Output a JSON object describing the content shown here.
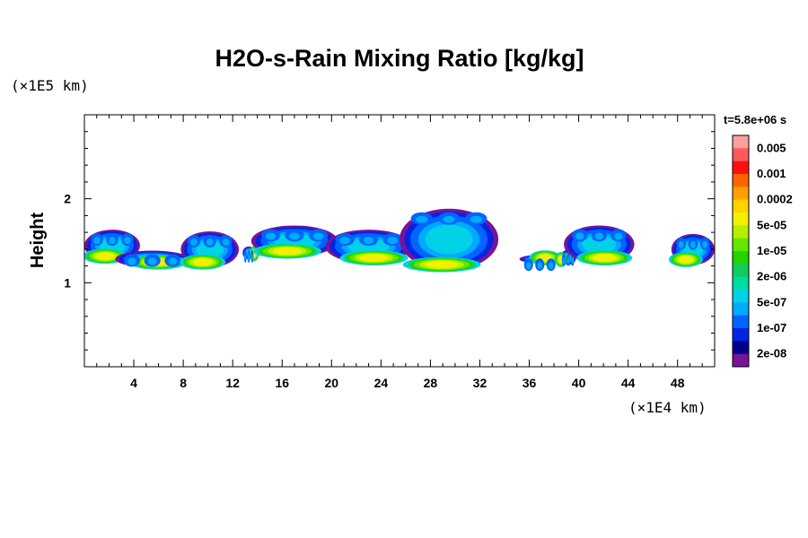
{
  "chart_data": {
    "type": "heatmap",
    "title": "H2O-s-Rain Mixing Ratio [kg/kg]",
    "time_label": "t=5.8e+06 s",
    "ylabel": "Height",
    "y_unit": "(×1E5 km)",
    "x_unit": "(×1E4 km)",
    "xlim": [
      0,
      51
    ],
    "ylim": [
      0,
      3
    ],
    "x_ticks": [
      4,
      8,
      12,
      16,
      20,
      24,
      28,
      32,
      36,
      40,
      44,
      48
    ],
    "y_ticks": [
      1,
      2
    ],
    "colorbar": {
      "labels": [
        "0.005",
        "0.001",
        "0.0002",
        "5e-05",
        "1e-05",
        "2e-06",
        "5e-07",
        "1e-07",
        "2e-08"
      ],
      "colors": [
        "#ff9f9f",
        "#ff5a5a",
        "#ff1010",
        "#ff6400",
        "#ffa000",
        "#ffd200",
        "#f0f000",
        "#b4f000",
        "#64e600",
        "#22d400",
        "#10cc60",
        "#00dca0",
        "#00d2e6",
        "#00aaff",
        "#0064ff",
        "#0024e6",
        "#00008c",
        "#781496"
      ]
    },
    "clouds": [
      {
        "x0": 0,
        "x1": 4.5,
        "base": 1.22,
        "top": 1.6,
        "core": 3
      },
      {
        "x0": 2.5,
        "x1": 8.5,
        "base": 1.15,
        "top": 1.35,
        "core": 2
      },
      {
        "x0": 7.8,
        "x1": 12.5,
        "base": 1.15,
        "top": 1.58,
        "core": 1
      },
      {
        "x0": 12.8,
        "x1": 13.8,
        "base": 1.25,
        "top": 1.4,
        "core": 3
      },
      {
        "x0": 13.5,
        "x1": 20.5,
        "base": 1.28,
        "top": 1.65,
        "core": 4
      },
      {
        "x0": 19.5,
        "x1": 26.5,
        "base": 1.2,
        "top": 1.6,
        "core": 1
      },
      {
        "x0": 25.5,
        "x1": 33.5,
        "base": 1.12,
        "top": 1.85,
        "core": 0
      },
      {
        "x0": 35.2,
        "x1": 38.5,
        "base": 1.2,
        "top": 1.3,
        "core": 2
      },
      {
        "x0": 38.5,
        "x1": 39.8,
        "base": 1.18,
        "top": 1.36,
        "core": 2
      },
      {
        "x0": 38.8,
        "x1": 44.5,
        "base": 1.2,
        "top": 1.65,
        "core": 3
      },
      {
        "x0": 47.5,
        "x1": 51,
        "base": 1.18,
        "top": 1.55,
        "core": 3
      }
    ]
  }
}
